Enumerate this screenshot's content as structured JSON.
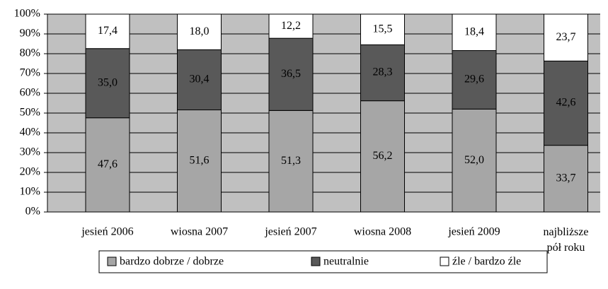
{
  "chart_data": {
    "type": "stacked_bar",
    "categories": [
      "jesień 2006",
      "wiosna 2007",
      "jesień 2007",
      "wiosna 2008",
      "jesień 2009",
      "najbliższe pół roku"
    ],
    "series": [
      {
        "name": "bardzo dobrze / dobrze",
        "color": "#a6a6a6",
        "values": [
          47.6,
          51.6,
          51.3,
          56.2,
          52.0,
          33.7
        ],
        "value_labels": [
          "47,6",
          "51,6",
          "51,3",
          "56,2",
          "52,0",
          "33,7"
        ]
      },
      {
        "name": "neutralnie",
        "color": "#595959",
        "values": [
          35.0,
          30.4,
          36.5,
          28.3,
          29.6,
          42.6
        ],
        "value_labels": [
          "35,0",
          "30,4",
          "36,5",
          "28,3",
          "29,6",
          "42,6"
        ]
      },
      {
        "name": "źle / bardzo źle",
        "color": "#ffffff",
        "values": [
          17.4,
          18.0,
          12.2,
          15.5,
          18.4,
          23.7
        ],
        "value_labels": [
          "17,4",
          "18,0",
          "12,2",
          "15,5",
          "18,4",
          "23,7"
        ]
      }
    ],
    "ylim": [
      0,
      100
    ],
    "yticks": [
      {
        "value": 0,
        "label": "0%"
      },
      {
        "value": 10,
        "label": "10%"
      },
      {
        "value": 20,
        "label": "20%"
      },
      {
        "value": 30,
        "label": "30%"
      },
      {
        "value": 40,
        "label": "40%"
      },
      {
        "value": 50,
        "label": "50%"
      },
      {
        "value": 60,
        "label": "60%"
      },
      {
        "value": 70,
        "label": "70%"
      },
      {
        "value": 80,
        "label": "80%"
      },
      {
        "value": 90,
        "label": "90%"
      },
      {
        "value": 100,
        "label": "100%"
      }
    ],
    "grid": true,
    "legend": "bottom"
  }
}
